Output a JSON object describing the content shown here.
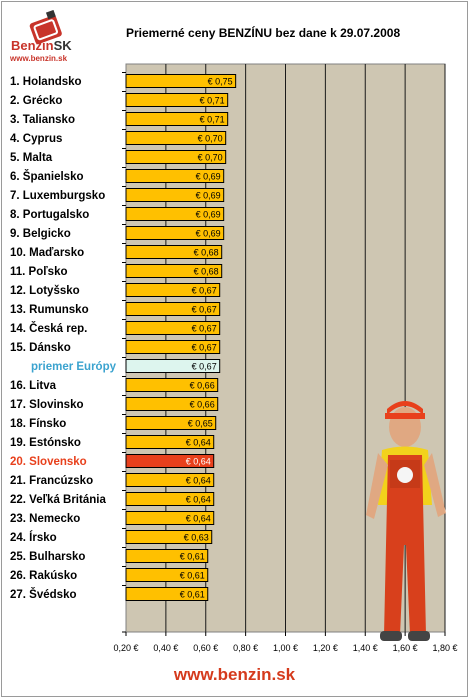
{
  "header": {
    "logo_name": "Benzin",
    "logo_suffix": "SK",
    "logo_url": "www.benzin.sk",
    "title": "Priemerné ceny BENZÍNU bez dane k 29.07.2008"
  },
  "footer": {
    "url": "www.benzin.sk"
  },
  "colors": {
    "bar": "#ffc000",
    "average_bar": "#ddf5ee",
    "highlight_bar": "#e8401c",
    "plot_bg": "#cec6b2",
    "average_label": "#3ba3cf",
    "highlight_label": "#e8401c"
  },
  "chart_data": {
    "type": "bar",
    "orientation": "horizontal",
    "title": "Priemerné ceny BENZÍNU bez dane k 29.07.2008",
    "categories": [
      "1. Holandsko",
      "2. Grécko",
      "3. Taliansko",
      "4. Cyprus",
      "5. Malta",
      "6. Španielsko",
      "7. Luxemburgsko",
      "8. Portugalsko",
      "9. Belgicko",
      "10. Maďarsko",
      "11. Poľsko",
      "12. Lotyšsko",
      "13. Rumunsko",
      "14. Česká rep.",
      "15. Dánsko",
      "priemer Európy",
      "16. Litva",
      "17. Slovinsko",
      "18. Fínsko",
      "19. Estónsko",
      "20. Slovensko",
      "21. Francúzsko",
      "22. Veľká Británia",
      "23. Nemecko",
      "24. Írsko",
      "25. Bulharsko",
      "26. Rakúsko",
      "27. Švédsko"
    ],
    "values": [
      0.75,
      0.71,
      0.71,
      0.7,
      0.7,
      0.69,
      0.69,
      0.69,
      0.69,
      0.68,
      0.68,
      0.67,
      0.67,
      0.67,
      0.67,
      0.67,
      0.66,
      0.66,
      0.65,
      0.64,
      0.64,
      0.64,
      0.64,
      0.64,
      0.63,
      0.61,
      0.61,
      0.61
    ],
    "value_labels": [
      "€ 0,75",
      "€ 0,71",
      "€ 0,71",
      "€ 0,70",
      "€ 0,70",
      "€ 0,69",
      "€ 0,69",
      "€ 0,69",
      "€ 0,69",
      "€ 0,68",
      "€ 0,68",
      "€ 0,67",
      "€ 0,67",
      "€ 0,67",
      "€ 0,67",
      "€ 0,67",
      "€ 0,66",
      "€ 0,66",
      "€ 0,65",
      "€ 0,64",
      "€ 0,64",
      "€ 0,64",
      "€ 0,64",
      "€ 0,64",
      "€ 0,63",
      "€ 0,61",
      "€ 0,61",
      "€ 0,61"
    ],
    "average_index": 15,
    "highlight_index": 20,
    "xlim": [
      0.2,
      1.8
    ],
    "xticks": [
      0.2,
      0.4,
      0.6,
      0.8,
      1.0,
      1.2,
      1.4,
      1.6,
      1.8
    ],
    "xtick_labels": [
      "0,20 €",
      "0,40 €",
      "0,60 €",
      "0,80 €",
      "1,00 €",
      "1,20 €",
      "1,40 €",
      "1,60 €",
      "1,80 €"
    ],
    "grid": true,
    "xlabel": "",
    "ylabel": ""
  }
}
